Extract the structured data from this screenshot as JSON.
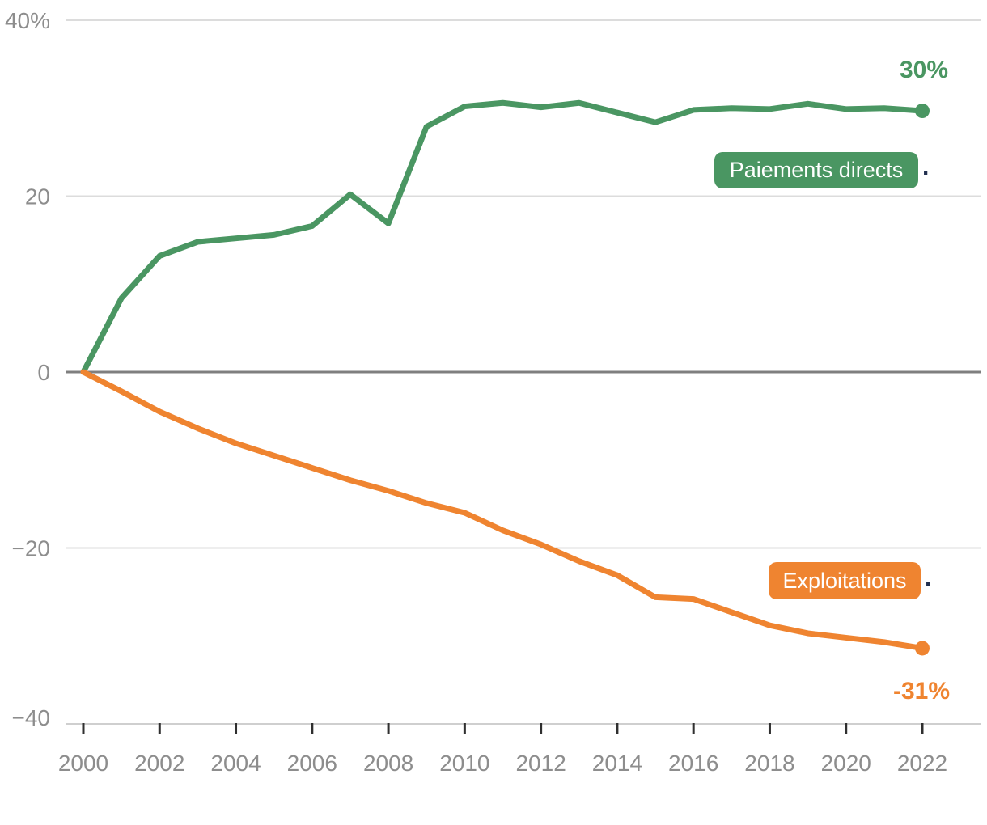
{
  "chart_data": {
    "type": "line",
    "title": "",
    "xlabel": "",
    "ylabel": "",
    "x": [
      2000,
      2001,
      2002,
      2003,
      2004,
      2005,
      2006,
      2007,
      2008,
      2009,
      2010,
      2011,
      2012,
      2013,
      2014,
      2015,
      2016,
      2017,
      2018,
      2019,
      2020,
      2021,
      2022
    ],
    "series": [
      {
        "name": "Paiements directs",
        "color": "#4a9662",
        "values": [
          0,
          8.4,
          13.2,
          14.8,
          15.2,
          15.6,
          16.6,
          20.2,
          16.9,
          27.9,
          30.2,
          30.6,
          30.1,
          30.6,
          29.5,
          28.4,
          29.8,
          30.0,
          29.9,
          30.5,
          29.9,
          30.0,
          29.7
        ],
        "end_label": "30%"
      },
      {
        "name": "Exploitations",
        "color": "#ef8430",
        "values": [
          0,
          -2.2,
          -4.5,
          -6.4,
          -8.1,
          -9.5,
          -10.9,
          -12.3,
          -13.5,
          -14.9,
          -16.0,
          -18.0,
          -19.6,
          -21.5,
          -23.1,
          -25.6,
          -25.8,
          -27.3,
          -28.8,
          -29.7,
          -30.2,
          -30.7,
          -31.4
        ],
        "end_label": "-31%"
      }
    ],
    "ylim": [
      -40,
      40
    ],
    "yticks": [
      {
        "value": 40,
        "label": "40%"
      },
      {
        "value": 20,
        "label": "20"
      },
      {
        "value": 0,
        "label": "0"
      },
      {
        "value": -20,
        "label": "−20"
      },
      {
        "value": -40,
        "label": "−40"
      }
    ],
    "xticks": [
      2000,
      2002,
      2004,
      2006,
      2008,
      2010,
      2012,
      2014,
      2016,
      2018,
      2020,
      2022
    ],
    "grid": "horizontal",
    "legend_position": "inline-badges"
  },
  "annotations": {
    "series1_badge_label": "Paiements directs",
    "series1_badge_suffix": ".",
    "series1_end_value": "30%",
    "series2_badge_label": "Exploitations",
    "series2_badge_suffix": ".",
    "series2_end_value": "-31%"
  },
  "colors": {
    "series1": "#4a9662",
    "series2": "#ef8430",
    "axis_label": "#8d8d8d",
    "gridline": "#dcdcdc",
    "zero_line": "#7f7f7f",
    "baseline": "#cfcfcf",
    "tick": "#2f2f2f",
    "suffix_dot": "#22304f",
    "badge_text": "#ffffff"
  }
}
